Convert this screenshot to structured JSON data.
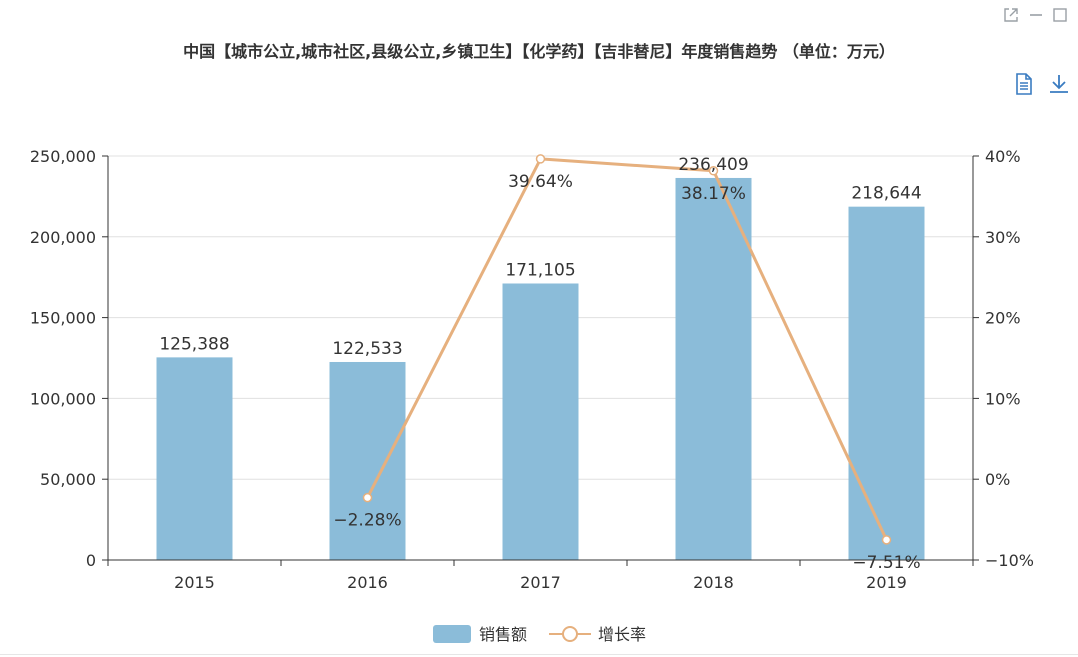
{
  "window_controls": {
    "open_icon": "external-link-icon",
    "minimize_icon": "minimize-icon",
    "maximize_icon": "maximize-icon"
  },
  "toolbar": {
    "data_view_icon": "document-icon",
    "download_icon": "download-icon"
  },
  "colors": {
    "bar": "#8bbcd9",
    "line": "#e6b07e",
    "axis": "#333333",
    "grid": "#e0e0e0"
  },
  "chart_data": {
    "type": "bar",
    "title": "中国【城市公立,城市社区,县级公立,乡镇卫生】【化学药】【吉非替尼】年度销售趋势 （单位：万元）",
    "categories": [
      "2015",
      "2016",
      "2017",
      "2018",
      "2019"
    ],
    "series": [
      {
        "name": "销售额",
        "type": "bar",
        "axis": "left",
        "values": [
          125388,
          122533,
          171105,
          236409,
          218644
        ],
        "labels": [
          "125,388",
          "122,533",
          "171,105",
          "236,409",
          "218,644"
        ]
      },
      {
        "name": "增长率",
        "type": "line",
        "axis": "right",
        "x": [
          "2016",
          "2017",
          "2018",
          "2019"
        ],
        "values": [
          -2.28,
          39.64,
          38.17,
          -7.51
        ],
        "labels": [
          "−2.28%",
          "39.64%",
          "38.17%",
          "−7.51%"
        ]
      }
    ],
    "y_left": {
      "ylim": [
        0,
        250000
      ],
      "ticks": [
        "0",
        "50,000",
        "100,000",
        "150,000",
        "200,000",
        "250,000"
      ]
    },
    "y_right": {
      "ylim": [
        -10,
        40
      ],
      "ticks": [
        "−10%",
        "0%",
        "10%",
        "20%",
        "30%",
        "40%"
      ]
    },
    "grid": true,
    "legend": "bottom-center"
  }
}
